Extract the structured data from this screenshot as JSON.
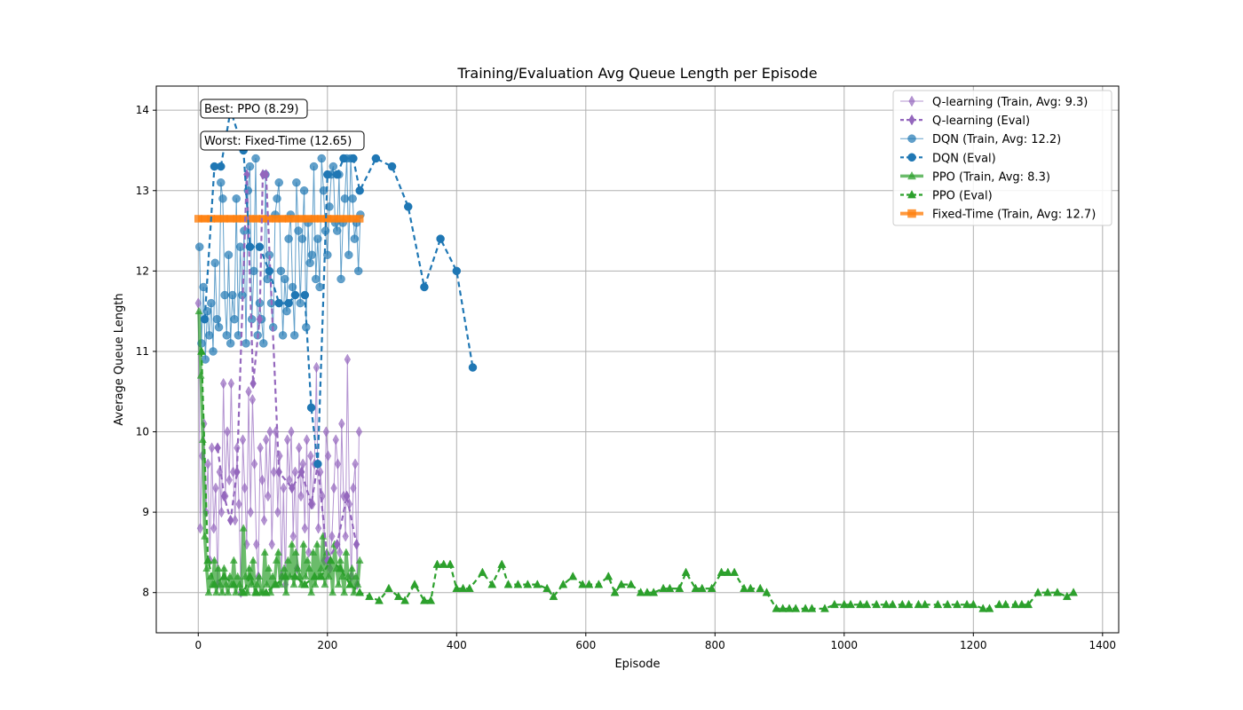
{
  "chart_data": {
    "type": "line",
    "title": "Training/Evaluation Avg Queue Length per Episode",
    "xlabel": "Episode",
    "ylabel": "Average Queue Length",
    "xlim": [
      -65,
      1425
    ],
    "ylim": [
      7.5,
      14.3
    ],
    "xticks": [
      0,
      200,
      400,
      600,
      800,
      1000,
      1200,
      1400
    ],
    "yticks": [
      8,
      9,
      10,
      11,
      12,
      13,
      14
    ],
    "grid": true,
    "legend_position": "top-right",
    "annotations": [
      {
        "text": "Best: PPO (8.29)"
      },
      {
        "text": "Worst: Fixed-Time (12.65)"
      }
    ],
    "series": [
      {
        "name": "Q-learning (Train, Avg: 9.3)",
        "kind": "train",
        "color": "#9467bd",
        "marker": "diamond",
        "x": [
          0,
          3,
          6,
          9,
          12,
          15,
          18,
          21,
          24,
          27,
          30,
          33,
          36,
          39,
          42,
          45,
          48,
          51,
          54,
          57,
          60,
          63,
          66,
          69,
          72,
          75,
          78,
          81,
          84,
          87,
          90,
          93,
          96,
          99,
          102,
          105,
          108,
          111,
          114,
          117,
          120,
          123,
          126,
          129,
          132,
          135,
          138,
          141,
          144,
          147,
          150,
          153,
          156,
          159,
          162,
          165,
          168,
          171,
          174,
          177,
          180,
          183,
          186,
          189,
          192,
          195,
          198,
          201,
          204,
          207,
          210,
          213,
          216,
          219,
          222,
          225,
          228,
          231,
          234,
          237,
          240,
          243,
          246,
          249
        ],
        "y": [
          11.6,
          8.8,
          9.7,
          10.1,
          9.0,
          9.6,
          8.4,
          9.8,
          8.8,
          9.3,
          8.1,
          9.5,
          9.0,
          10.6,
          9.2,
          10.0,
          9.4,
          10.6,
          9.5,
          8.9,
          9.8,
          9.1,
          8.0,
          9.9,
          9.3,
          8.6,
          10.5,
          9.0,
          10.4,
          9.6,
          8.6,
          8.2,
          9.8,
          9.4,
          8.9,
          9.9,
          9.2,
          10.0,
          8.6,
          9.5,
          10.0,
          9.0,
          9.7,
          8.2,
          9.3,
          8.1,
          9.9,
          9.4,
          10.0,
          8.7,
          9.5,
          8.3,
          9.8,
          9.2,
          9.6,
          8.8,
          9.9,
          8.5,
          9.7,
          9.1,
          9.6,
          10.8,
          8.8,
          9.5,
          9.2,
          8.4,
          10.0,
          9.7,
          8.3,
          8.7,
          9.3,
          9.9,
          9.6,
          8.5,
          10.1,
          9.2,
          8.7,
          10.9,
          9.1,
          8.2,
          9.3,
          9.6,
          8.1,
          10.0
        ]
      },
      {
        "name": "Q-learning (Eval)",
        "kind": "eval",
        "color": "#9467bd",
        "marker": "diamond",
        "x": [
          30,
          40,
          50,
          60,
          75,
          85,
          95,
          100,
          105,
          125,
          145,
          160,
          175,
          185,
          200,
          215,
          230,
          245
        ],
        "y": [
          9.8,
          9.2,
          8.9,
          9.5,
          13.2,
          10.6,
          11.4,
          13.2,
          13.2,
          9.5,
          9.3,
          9.5,
          9.1,
          9.6,
          8.4,
          8.6,
          9.2,
          8.6
        ]
      },
      {
        "name": "DQN (Train, Avg: 12.2)",
        "kind": "train",
        "color": "#1f77b4",
        "marker": "circle",
        "x": [
          2,
          5,
          8,
          11,
          14,
          17,
          20,
          23,
          26,
          29,
          32,
          35,
          38,
          41,
          44,
          47,
          50,
          53,
          56,
          59,
          62,
          65,
          68,
          71,
          74,
          77,
          80,
          83,
          86,
          89,
          92,
          95,
          98,
          101,
          104,
          107,
          110,
          113,
          116,
          119,
          122,
          125,
          128,
          131,
          134,
          137,
          140,
          143,
          146,
          149,
          152,
          155,
          158,
          161,
          164,
          167,
          170,
          173,
          176,
          179,
          182,
          185,
          188,
          191,
          194,
          197,
          200,
          203,
          206,
          209,
          212,
          215,
          218,
          221,
          224,
          227,
          230,
          233,
          236,
          239,
          242,
          245,
          248,
          251
        ],
        "y": [
          12.3,
          11.1,
          11.8,
          10.9,
          11.5,
          11.2,
          11.6,
          11.0,
          12.1,
          11.4,
          11.3,
          13.1,
          12.9,
          11.7,
          11.2,
          12.2,
          11.1,
          11.7,
          11.4,
          12.9,
          11.2,
          12.3,
          11.7,
          12.5,
          11.1,
          13.0,
          13.3,
          11.4,
          12.0,
          13.4,
          11.2,
          11.6,
          11.4,
          11.1,
          13.2,
          11.9,
          12.2,
          11.6,
          11.3,
          12.7,
          12.9,
          13.1,
          12.0,
          11.2,
          11.9,
          11.5,
          12.4,
          12.7,
          11.8,
          11.2,
          13.1,
          12.5,
          11.6,
          12.4,
          13.0,
          11.3,
          12.6,
          12.1,
          12.2,
          13.3,
          11.9,
          12.4,
          11.8,
          13.4,
          13.0,
          12.5,
          12.2,
          12.8,
          13.2,
          13.3,
          12.6,
          12.5,
          13.2,
          11.9,
          12.6,
          12.9,
          13.4,
          12.2,
          13.4,
          12.9,
          12.4,
          12.6,
          12.0,
          12.7
        ]
      },
      {
        "name": "DQN (Eval)",
        "kind": "eval",
        "color": "#1f77b4",
        "marker": "circle",
        "x": [
          10,
          25,
          35,
          50,
          70,
          80,
          95,
          110,
          125,
          140,
          150,
          165,
          175,
          185,
          200,
          215,
          225,
          240,
          250,
          275,
          300,
          325,
          350,
          375,
          400,
          425
        ],
        "y": [
          11.4,
          13.3,
          13.3,
          14.0,
          13.5,
          12.3,
          12.3,
          12.0,
          11.6,
          11.6,
          11.7,
          11.7,
          10.3,
          9.6,
          13.2,
          13.2,
          13.4,
          13.4,
          13.0,
          13.4,
          13.3,
          12.8,
          11.8,
          12.4,
          12.0,
          10.8
        ]
      },
      {
        "name": "PPO (Train, Avg: 8.3)",
        "kind": "train",
        "color": "#2ca02c",
        "marker": "triangle",
        "x": [
          1,
          4,
          7,
          10,
          13,
          16,
          19,
          22,
          25,
          28,
          31,
          34,
          37,
          40,
          43,
          46,
          49,
          52,
          55,
          58,
          61,
          64,
          67,
          70,
          73,
          76,
          79,
          82,
          85,
          88,
          91,
          94,
          97,
          100,
          103,
          106,
          109,
          112,
          115,
          118,
          121,
          124,
          127,
          130,
          133,
          136,
          139,
          142,
          145,
          148,
          151,
          154,
          157,
          160,
          163,
          166,
          169,
          172,
          175,
          178,
          181,
          184,
          187,
          190,
          193,
          196,
          199,
          202,
          205,
          208,
          211,
          214,
          217,
          220,
          223,
          226,
          229,
          232,
          235,
          238,
          241,
          244,
          247,
          250
        ],
        "y": [
          11.5,
          10.7,
          9.9,
          8.7,
          8.3,
          8.0,
          8.2,
          8.1,
          8.4,
          8.0,
          8.3,
          8.1,
          8.0,
          8.3,
          8.1,
          8.0,
          8.2,
          8.1,
          8.4,
          8.0,
          8.2,
          8.1,
          8.0,
          8.8,
          8.2,
          8.0,
          8.3,
          8.1,
          8.4,
          8.0,
          8.1,
          8.2,
          8.0,
          8.0,
          8.5,
          8.1,
          8.3,
          8.0,
          8.2,
          8.1,
          8.4,
          8.5,
          8.1,
          8.2,
          8.3,
          8.0,
          8.4,
          8.2,
          8.6,
          8.1,
          8.5,
          8.3,
          8.2,
          8.1,
          8.6,
          8.2,
          8.4,
          8.3,
          8.0,
          8.5,
          8.1,
          8.6,
          8.2,
          8.3,
          8.7,
          8.1,
          8.5,
          8.2,
          8.4,
          8.0,
          8.6,
          8.3,
          8.1,
          8.4,
          8.2,
          8.0,
          8.5,
          8.2,
          8.1,
          8.3,
          8.0,
          8.2,
          8.1,
          8.4
        ]
      },
      {
        "name": "PPO (Eval)",
        "kind": "eval",
        "color": "#2ca02c",
        "marker": "triangle",
        "x": [
          5,
          15,
          25,
          40,
          55,
          70,
          80,
          90,
          105,
          120,
          135,
          150,
          165,
          180,
          190,
          205,
          220,
          235,
          250,
          265,
          280,
          295,
          310,
          320,
          335,
          350,
          360,
          370,
          380,
          390,
          400,
          410,
          420,
          440,
          455,
          470,
          480,
          495,
          510,
          525,
          540,
          550,
          565,
          580,
          595,
          605,
          620,
          635,
          645,
          655,
          670,
          685,
          695,
          705,
          720,
          730,
          745,
          755,
          770,
          780,
          795,
          810,
          820,
          830,
          845,
          855,
          870,
          880,
          895,
          905,
          915,
          925,
          940,
          950,
          970,
          985,
          1000,
          1010,
          1025,
          1035,
          1050,
          1065,
          1075,
          1090,
          1100,
          1115,
          1125,
          1145,
          1160,
          1175,
          1190,
          1200,
          1215,
          1225,
          1240,
          1250,
          1265,
          1275,
          1285,
          1300,
          1315,
          1330,
          1345,
          1355
        ],
        "y": [
          11.0,
          8.4,
          8.1,
          8.2,
          8.1,
          8.0,
          8.2,
          8.0,
          8.0,
          8.1,
          8.2,
          8.2,
          8.1,
          8.2,
          8.2,
          8.4,
          8.3,
          8.1,
          8.0,
          7.95,
          7.9,
          8.05,
          7.95,
          7.9,
          8.1,
          7.9,
          7.9,
          8.35,
          8.35,
          8.35,
          8.05,
          8.05,
          8.05,
          8.25,
          8.1,
          8.35,
          8.1,
          8.1,
          8.1,
          8.1,
          8.05,
          7.95,
          8.1,
          8.2,
          8.1,
          8.1,
          8.1,
          8.2,
          8.0,
          8.1,
          8.1,
          8.0,
          8.0,
          8.0,
          8.05,
          8.05,
          8.05,
          8.25,
          8.05,
          8.05,
          8.05,
          8.25,
          8.25,
          8.25,
          8.05,
          8.05,
          8.05,
          8.0,
          7.8,
          7.8,
          7.8,
          7.8,
          7.8,
          7.8,
          7.8,
          7.85,
          7.85,
          7.85,
          7.85,
          7.85,
          7.85,
          7.85,
          7.85,
          7.85,
          7.85,
          7.85,
          7.85,
          7.85,
          7.85,
          7.85,
          7.85,
          7.85,
          7.8,
          7.8,
          7.85,
          7.85,
          7.85,
          7.85,
          7.85,
          8.0,
          8.0,
          8.0,
          7.95,
          8.0
        ]
      },
      {
        "name": "Fixed-Time (Train, Avg: 12.7)",
        "kind": "fixed",
        "color": "#ff7f0e",
        "marker": "square",
        "x": [
          0,
          10,
          20,
          30,
          40,
          50,
          60,
          70,
          80,
          90,
          100,
          110,
          120,
          130,
          140,
          150,
          160,
          170,
          180,
          190,
          200,
          210,
          220,
          230,
          240,
          250
        ],
        "y": [
          12.65,
          12.65,
          12.65,
          12.65,
          12.65,
          12.65,
          12.65,
          12.65,
          12.65,
          12.65,
          12.65,
          12.65,
          12.65,
          12.65,
          12.65,
          12.65,
          12.65,
          12.65,
          12.65,
          12.65,
          12.65,
          12.65,
          12.65,
          12.65,
          12.65,
          12.65
        ]
      }
    ]
  }
}
